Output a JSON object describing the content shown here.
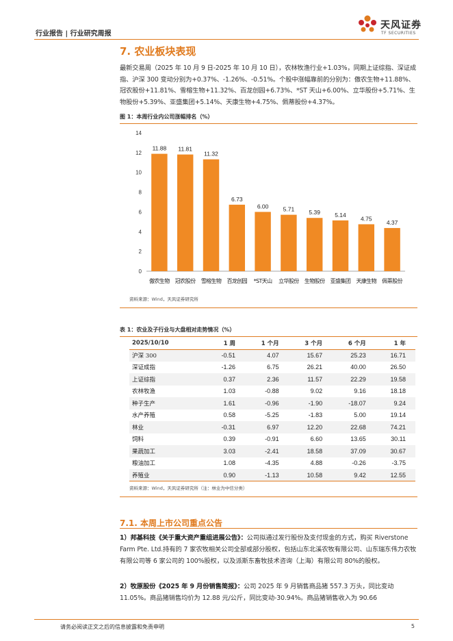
{
  "header": {
    "breadcrumb": "行业报告 | 行业研究周报",
    "logo_cn": "天风证券",
    "logo_en": "TF SECURITIES"
  },
  "section": {
    "title": "7. 农业板块表现",
    "paragraph": "最新交易周（2025 年 10 月 9 日-2025 年 10 月 10 日），农林牧渔行业+1.03%，同期上证综指、深证成指、沪深 300 变动分别为+0.37%、-1.26%、-0.51%。个股中涨幅靠前的分别为：傲农生物+11.88%、冠农股份+11.81%、雪榕生物+11.32%、百龙创园+6.73%、*ST 天山+6.00%、立华股份+5.71%、生物股份+5.39%、亚盛集团+5.14%、天康生物+4.75%、佩蒂股份+4.37%。"
  },
  "figure1": {
    "title": "图 1：本周行业内公司涨幅排名（%）",
    "source": "资料来源：Wind，天风证券研究所"
  },
  "chart_data": {
    "type": "bar",
    "title": "本周行业内公司涨幅排名（%）",
    "categories": [
      "傲农生物",
      "冠农股份",
      "雪榕生物",
      "百龙创园",
      "*ST天山",
      "立华股份",
      "生物股份",
      "亚盛集团",
      "天康生物",
      "佩蒂股份"
    ],
    "values": [
      11.88,
      11.81,
      11.32,
      6.73,
      6.0,
      5.71,
      5.39,
      5.14,
      4.75,
      4.37
    ],
    "labels": [
      "11.88",
      "11.81",
      "11.32",
      "6.73",
      "6.00",
      "5.71",
      "5.39",
      "5.14",
      "4.75",
      "4.37"
    ],
    "yticks": [
      "0",
      "2",
      "4",
      "6",
      "8",
      "10",
      "12",
      "14"
    ],
    "ylim": [
      0,
      14
    ],
    "bar_color": "#f08a24",
    "xlabel": "",
    "ylabel": ""
  },
  "table1": {
    "title": "表 1：农业及子行业与大盘相对走势情况（%）",
    "headers": [
      "2025/10/10",
      "1 周",
      "1 个月",
      "3 个月",
      "6 个月",
      "1 年"
    ],
    "rows": [
      [
        "沪深 300",
        "-0.51",
        "4.07",
        "15.67",
        "25.23",
        "16.71"
      ],
      [
        "深证成指",
        "-1.26",
        "6.75",
        "26.21",
        "40.00",
        "26.50"
      ],
      [
        "上证综指",
        "0.37",
        "2.36",
        "11.57",
        "22.29",
        "19.58"
      ],
      [
        "农林牧渔",
        "1.03",
        "-0.88",
        "9.02",
        "9.16",
        "18.18"
      ],
      [
        "种子生产",
        "1.61",
        "-0.96",
        "-1.90",
        "-18.07",
        "9.24"
      ],
      [
        "水产养殖",
        "0.58",
        "-5.25",
        "-1.83",
        "5.00",
        "19.14"
      ],
      [
        "林业",
        "-0.31",
        "6.97",
        "12.20",
        "22.68",
        "74.21"
      ],
      [
        "饲料",
        "0.39",
        "-0.91",
        "6.60",
        "13.65",
        "30.11"
      ],
      [
        "果蔬加工",
        "3.03",
        "-2.41",
        "18.58",
        "37.09",
        "30.67"
      ],
      [
        "粮油加工",
        "1.08",
        "-4.35",
        "4.88",
        "-0.26",
        "-3.75"
      ],
      [
        "养殖业",
        "0.90",
        "-1.13",
        "10.58",
        "9.42",
        "12.55"
      ]
    ],
    "source": "资料来源：Wind，天风证券研究所（注：林业为中信分类）"
  },
  "announcements": {
    "title": "7.1. 本周上市公司重点公告",
    "item1_head": "1）邦基科技《关于重大资产重组进展公告》：",
    "item1_body": "公司拟通过发行股份及支付现金的方式，购买 Riverstone Farm Pte. Ltd.持有的 7 家农牧相关公司全部或部分股权，包括山东北溪农牧有限公司、山东瑞东伟力农牧有限公司等 6 家公司的 100%股权，以及派斯东畜牧技术咨询（上海）有限公司 80%的股权。",
    "item2_head": "2）牧原股份《2025 年 9 月份销售简报》：",
    "item2_body": "公司 2025 年 9 月销售商品猪 557.3 万头，同比变动 11.05%。商品猪销售均价为 12.88 元/公斤，同比变动-30.94%。商品猪销售收入为 90.66"
  },
  "footer": {
    "disclaimer": "请务必阅读正文之后的信息披露和免责申明",
    "page": "5"
  }
}
